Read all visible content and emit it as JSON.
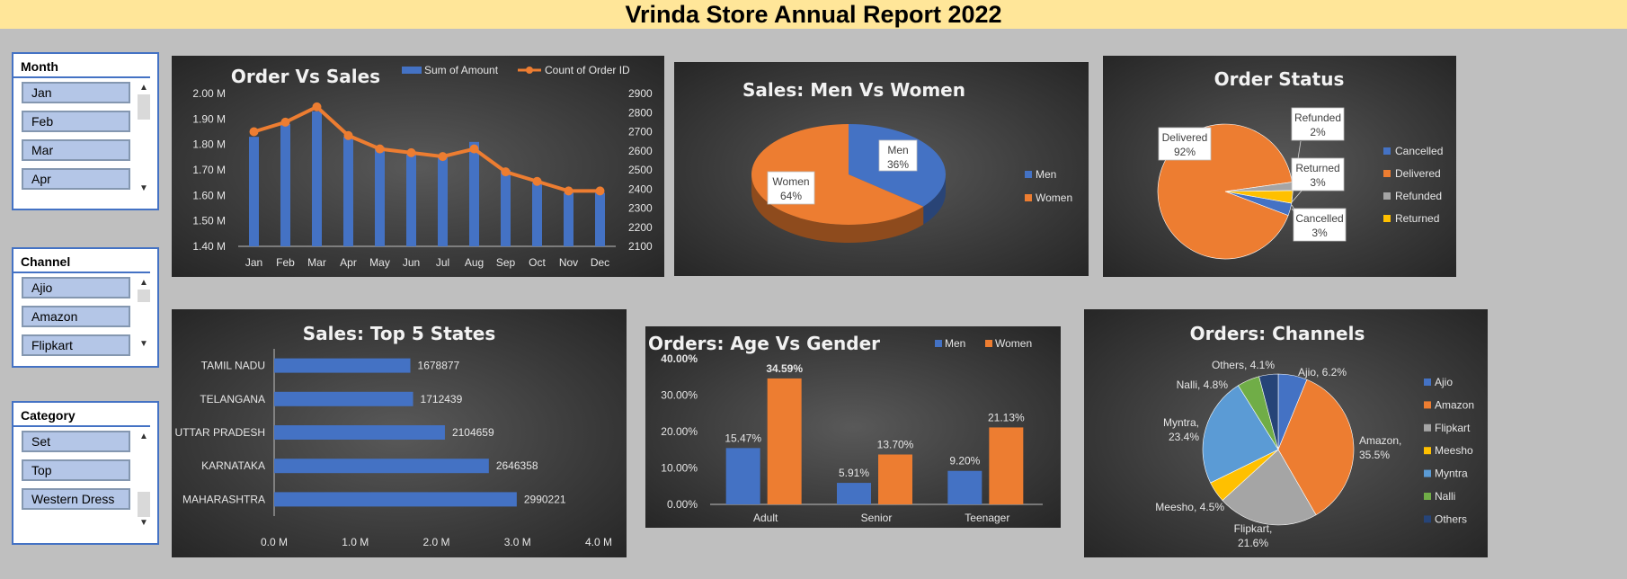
{
  "report_title": "Vrinda Store Annual Report 2022",
  "slicers": {
    "month": {
      "title": "Month",
      "items": [
        "Jan",
        "Feb",
        "Mar",
        "Apr"
      ]
    },
    "channel": {
      "title": "Channel",
      "items": [
        "Ajio",
        "Amazon",
        "Flipkart"
      ]
    },
    "category": {
      "title": "Category",
      "items": [
        "Set",
        "Top",
        "Western Dress"
      ]
    }
  },
  "chart_data": [
    {
      "id": "order_vs_sales",
      "type": "bar",
      "title": "Order Vs Sales",
      "categories": [
        "Jan",
        "Feb",
        "Mar",
        "Apr",
        "May",
        "Jun",
        "Jul",
        "Aug",
        "Sep",
        "Oct",
        "Nov",
        "Dec"
      ],
      "series": [
        {
          "name": "Sum of Amount",
          "type": "bar",
          "axis": "left",
          "color": "#4472c4",
          "values": [
            1.83,
            1.88,
            1.93,
            1.83,
            1.79,
            1.76,
            1.75,
            1.81,
            1.7,
            1.65,
            1.61,
            1.61
          ]
        },
        {
          "name": "Count of Order ID",
          "type": "line",
          "axis": "right",
          "color": "#ed7d31",
          "values": [
            2700,
            2750,
            2830,
            2680,
            2610,
            2590,
            2570,
            2610,
            2490,
            2440,
            2390,
            2390
          ]
        }
      ],
      "y_left_ticks": [
        "1.40 M",
        "1.50 M",
        "1.60 M",
        "1.70 M",
        "1.80 M",
        "1.90 M",
        "2.00 M"
      ],
      "ylim_left": [
        1.4,
        2.0
      ],
      "y_right_ticks": [
        "2100",
        "2200",
        "2300",
        "2400",
        "2500",
        "2600",
        "2700",
        "2800",
        "2900"
      ],
      "ylim_right": [
        2100,
        2900
      ],
      "legend": "top"
    },
    {
      "id": "men_vs_women",
      "type": "pie",
      "title": "Sales: Men Vs Women",
      "labels": [
        "Men",
        "Women"
      ],
      "values": [
        36,
        64
      ],
      "data_labels": [
        [
          "Men",
          "36%"
        ],
        [
          "Women",
          "64%"
        ]
      ],
      "colors": [
        "#4472c4",
        "#ed7d31"
      ],
      "legend": "right"
    },
    {
      "id": "order_status",
      "type": "pie",
      "title": "Order Status",
      "labels": [
        "Cancelled",
        "Delivered",
        "Refunded",
        "Returned"
      ],
      "values": [
        3,
        92,
        2,
        3
      ],
      "data_labels": [
        [
          "Cancelled",
          "3%"
        ],
        [
          "Delivered",
          "92%"
        ],
        [
          "Refunded",
          "2%"
        ],
        [
          "Returned",
          "3%"
        ]
      ],
      "colors": [
        "#4472c4",
        "#ed7d31",
        "#a5a5a5",
        "#ffc000"
      ],
      "legend": "right"
    },
    {
      "id": "top5_states",
      "type": "bar",
      "orientation": "horizontal",
      "title": "Sales: Top 5 States",
      "categories": [
        "TAMIL NADU",
        "TELANGANA",
        "UTTAR PRADESH",
        "KARNATAKA",
        "MAHARASHTRA"
      ],
      "values": [
        1678877,
        1712439,
        2104659,
        2646358,
        2990221
      ],
      "x_ticks": [
        "0.0 M",
        "1.0 M",
        "2.0 M",
        "3.0 M",
        "4.0 M"
      ],
      "xlim": [
        0,
        4000000
      ],
      "color": "#4472c4"
    },
    {
      "id": "age_vs_gender",
      "type": "bar",
      "title": "Orders: Age Vs Gender",
      "categories": [
        "Adult",
        "Senior",
        "Teenager"
      ],
      "series": [
        {
          "name": "Men",
          "color": "#4472c4",
          "values": [
            15.47,
            5.91,
            9.2
          ],
          "labels": [
            "15.47%",
            "5.91%",
            "9.20%"
          ]
        },
        {
          "name": "Women",
          "color": "#ed7d31",
          "values": [
            34.59,
            13.7,
            21.13
          ],
          "labels": [
            "34.59%",
            "13.70%",
            "21.13%"
          ]
        }
      ],
      "y_ticks": [
        "0.00%",
        "10.00%",
        "20.00%",
        "30.00%",
        "40.00%"
      ],
      "ylim": [
        0,
        40
      ],
      "legend": "top-right"
    },
    {
      "id": "channels",
      "type": "pie",
      "title": "Orders: Channels",
      "labels": [
        "Ajio",
        "Amazon",
        "Flipkart",
        "Meesho",
        "Myntra",
        "Nalli",
        "Others"
      ],
      "values": [
        6.2,
        35.5,
        21.6,
        4.5,
        23.4,
        4.8,
        4.1
      ],
      "data_labels": [
        "Ajio, 6.2%",
        "Amazon, 35.5%",
        "Flipkart, 21.6%",
        "Meesho, 4.5%",
        "Myntra, 23.4%",
        "Nalli, 4.8%",
        "Others, 4.1%"
      ],
      "colors": [
        "#4472c4",
        "#ed7d31",
        "#a5a5a5",
        "#ffc000",
        "#5b9bd5",
        "#70ad47",
        "#264478"
      ],
      "legend": "right"
    }
  ]
}
